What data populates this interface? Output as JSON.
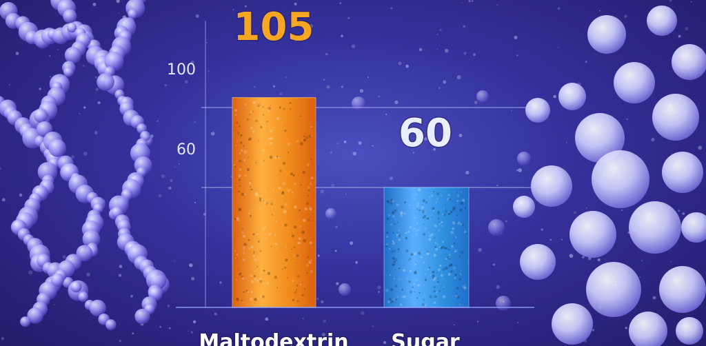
{
  "chart_data": {
    "type": "bar",
    "categories": [
      "Maltodextrin",
      "Sugar"
    ],
    "values": [
      105,
      60
    ],
    "data_labels": [
      "105",
      "60"
    ],
    "yticks": [
      60,
      100
    ],
    "ylim": [
      0,
      120
    ],
    "grid": true,
    "colors": {
      "Maltodextrin": "#f08a1a",
      "Sugar": "#2f8fe0"
    },
    "label_colors": {
      "Maltodextrin": "#f5a623",
      "Sugar": "#e8f0ff"
    },
    "title": "",
    "xlabel": "",
    "ylabel": ""
  }
}
